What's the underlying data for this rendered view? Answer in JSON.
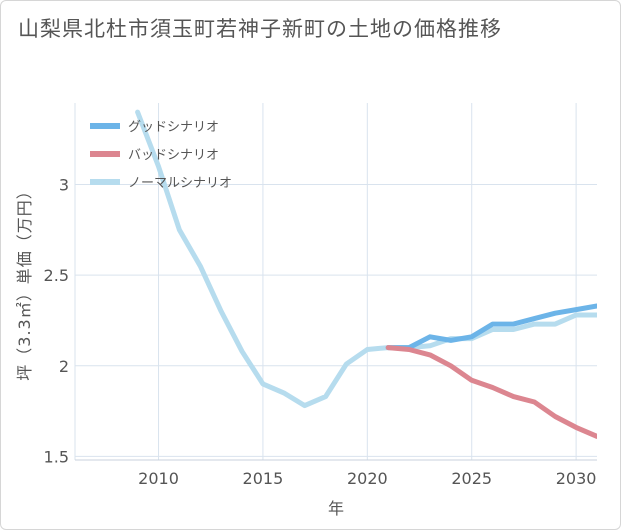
{
  "chart_data": {
    "type": "line",
    "title": "山梨県北杜市須玉町若神子新町の土地の価格推移",
    "xlabel": "年",
    "ylabel": "坪（3.3㎡）単価（万円）",
    "xlim": [
      2006,
      2031
    ],
    "ylim": [
      1.48,
      3.45
    ],
    "x_ticks": [
      "2010",
      "2015",
      "2020",
      "2025",
      "2030"
    ],
    "x_tick_values": [
      2010,
      2015,
      2020,
      2025,
      2030
    ],
    "y_ticks": [
      "1.5",
      "2",
      "2.5",
      "3"
    ],
    "y_tick_values": [
      1.5,
      2,
      2.5,
      3
    ],
    "grid": true,
    "legend_position": "top-left",
    "series": [
      {
        "name": "グッドシナリオ",
        "color": "#6cb4e8",
        "x": [
          2021,
          2022,
          2023,
          2024,
          2025,
          2026,
          2027,
          2028,
          2029,
          2030,
          2031
        ],
        "y": [
          2.1,
          2.1,
          2.16,
          2.14,
          2.16,
          2.23,
          2.23,
          2.26,
          2.29,
          2.31,
          2.33
        ]
      },
      {
        "name": "バッドシナリオ",
        "color": "#dc8690",
        "x": [
          2021,
          2022,
          2023,
          2024,
          2025,
          2026,
          2027,
          2028,
          2029,
          2030,
          2031
        ],
        "y": [
          2.1,
          2.09,
          2.06,
          2.0,
          1.92,
          1.88,
          1.83,
          1.8,
          1.72,
          1.66,
          1.61
        ]
      },
      {
        "name": "ノーマルシナリオ",
        "color": "#b6dcee",
        "x": [
          2009,
          2010,
          2011,
          2012,
          2013,
          2014,
          2015,
          2016,
          2017,
          2018,
          2019,
          2020,
          2021,
          2022,
          2023,
          2024,
          2025,
          2026,
          2027,
          2028,
          2029,
          2030,
          2031
        ],
        "y": [
          3.4,
          3.1,
          2.75,
          2.55,
          2.3,
          2.08,
          1.9,
          1.85,
          1.78,
          1.83,
          2.01,
          2.09,
          2.1,
          2.1,
          2.11,
          2.15,
          2.15,
          2.2,
          2.2,
          2.23,
          2.23,
          2.28,
          2.28
        ]
      }
    ]
  }
}
